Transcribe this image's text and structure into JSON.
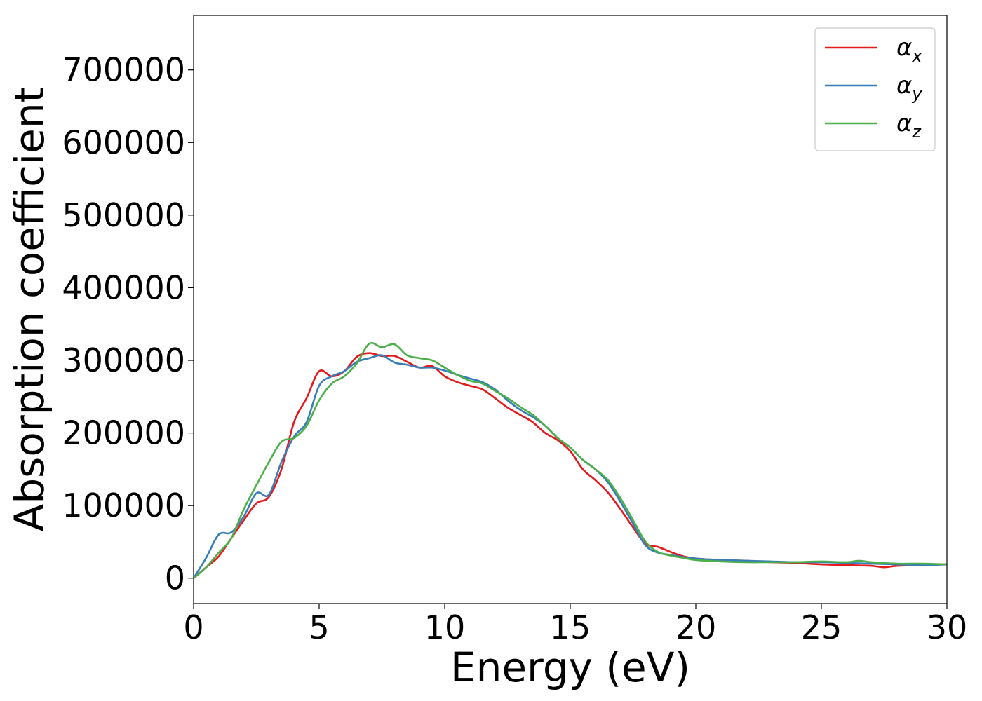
{
  "chart_data": {
    "type": "line",
    "title": "",
    "xlabel": "Energy (eV)",
    "ylabel": "Absorption coefficient",
    "xlim": [
      0,
      30
    ],
    "ylim": [
      -35000,
      775000
    ],
    "xticks": [
      0,
      5,
      10,
      15,
      20,
      25,
      30
    ],
    "yticks": [
      0,
      100000,
      200000,
      300000,
      400000,
      500000,
      600000,
      700000
    ],
    "xtick_labels": [
      "0",
      "5",
      "10",
      "15",
      "20",
      "25",
      "30"
    ],
    "ytick_labels": [
      "0",
      "100000",
      "200000",
      "300000",
      "400000",
      "500000",
      "600000",
      "700000"
    ],
    "grid": false,
    "legend_position": "top-right",
    "series": [
      {
        "name": "α_x",
        "symbol": "α",
        "subscript": "x",
        "color": "#e41a1c",
        "x": [
          0,
          0.5,
          1.0,
          1.5,
          2.0,
          2.5,
          3.0,
          3.5,
          4.0,
          4.5,
          5.0,
          5.5,
          6.0,
          6.5,
          7.0,
          7.5,
          8.0,
          8.5,
          9.0,
          9.5,
          10.0,
          10.5,
          11.0,
          11.5,
          12.0,
          12.5,
          13.0,
          13.5,
          14.0,
          14.5,
          15.0,
          15.5,
          16.0,
          16.5,
          17.0,
          17.5,
          18.0,
          18.5,
          19.0,
          19.5,
          20.0,
          21.0,
          22.0,
          23.0,
          24.0,
          25.0,
          26.0,
          27.0,
          27.5,
          28.0,
          29.0,
          30.0
        ],
        "values": [
          0,
          15000,
          30000,
          55000,
          80000,
          103000,
          112000,
          150000,
          215000,
          248000,
          285000,
          278000,
          285000,
          305000,
          310000,
          306000,
          306000,
          298000,
          290000,
          292000,
          278000,
          270000,
          265000,
          260000,
          248000,
          235000,
          225000,
          215000,
          200000,
          190000,
          175000,
          150000,
          135000,
          118000,
          95000,
          70000,
          47000,
          43000,
          36000,
          30000,
          27000,
          25000,
          24000,
          22000,
          21000,
          19000,
          18000,
          17000,
          15000,
          17000,
          18000,
          19000
        ]
      },
      {
        "name": "α_y",
        "symbol": "α",
        "subscript": "y",
        "color": "#377eb8",
        "x": [
          0,
          0.5,
          1.0,
          1.5,
          2.0,
          2.5,
          3.0,
          3.5,
          4.0,
          4.5,
          5.0,
          5.5,
          6.0,
          6.5,
          7.0,
          7.5,
          8.0,
          8.5,
          9.0,
          9.5,
          10.0,
          10.5,
          11.0,
          11.5,
          12.0,
          12.5,
          13.0,
          13.5,
          14.0,
          14.5,
          15.0,
          15.5,
          16.0,
          16.5,
          17.0,
          17.5,
          18.0,
          18.5,
          19.0,
          19.5,
          20.0,
          21.0,
          22.0,
          23.0,
          24.0,
          25.0,
          26.0,
          27.0,
          28.0,
          29.0,
          30.0
        ],
        "values": [
          0,
          28000,
          60000,
          63000,
          85000,
          117000,
          115000,
          160000,
          195000,
          215000,
          265000,
          278000,
          285000,
          298000,
          303000,
          307000,
          297000,
          294000,
          290000,
          290000,
          286000,
          280000,
          275000,
          270000,
          260000,
          245000,
          232000,
          222000,
          210000,
          193000,
          180000,
          163000,
          150000,
          132000,
          105000,
          75000,
          45000,
          35000,
          32000,
          29000,
          27000,
          25000,
          24000,
          23000,
          22000,
          22000,
          21000,
          20000,
          19000,
          18000,
          19000
        ]
      },
      {
        "name": "α_z",
        "symbol": "α",
        "subscript": "z",
        "color": "#4daf4a",
        "x": [
          0,
          0.5,
          1.0,
          1.5,
          2.0,
          2.5,
          3.0,
          3.5,
          4.0,
          4.5,
          5.0,
          5.5,
          6.0,
          6.5,
          7.0,
          7.5,
          8.0,
          8.5,
          9.0,
          9.5,
          10.0,
          10.5,
          11.0,
          11.5,
          12.0,
          12.5,
          13.0,
          13.5,
          14.0,
          14.5,
          15.0,
          15.5,
          16.0,
          16.5,
          17.0,
          17.5,
          18.0,
          18.5,
          19.0,
          19.5,
          20.0,
          21.0,
          22.0,
          23.0,
          24.0,
          25.0,
          26.0,
          26.5,
          27.0,
          28.0,
          29.0,
          30.0
        ],
        "values": [
          0,
          15000,
          35000,
          55000,
          95000,
          128000,
          160000,
          188000,
          193000,
          210000,
          245000,
          268000,
          278000,
          296000,
          323000,
          318000,
          322000,
          307000,
          303000,
          300000,
          290000,
          280000,
          272000,
          268000,
          258000,
          248000,
          236000,
          225000,
          210000,
          193000,
          180000,
          163000,
          150000,
          135000,
          110000,
          80000,
          50000,
          36000,
          31000,
          28000,
          25000,
          23000,
          22000,
          22000,
          22000,
          23000,
          22000,
          24000,
          22000,
          20000,
          20000,
          19000
        ]
      }
    ]
  }
}
